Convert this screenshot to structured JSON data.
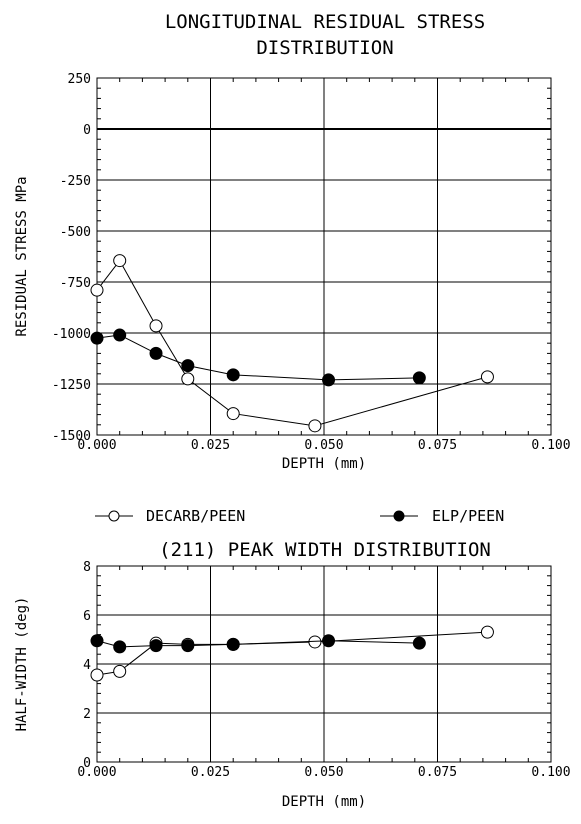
{
  "chart_data": [
    {
      "type": "line",
      "title_lines": [
        "LONGITUDINAL RESIDUAL STRESS",
        "DISTRIBUTION"
      ],
      "xlabel": "DEPTH (mm)",
      "ylabel": "RESIDUAL STRESS MPa",
      "xlim": [
        0,
        0.1
      ],
      "ylim": [
        -1500,
        250
      ],
      "x_ticks": [
        0,
        0.025,
        0.05,
        0.075,
        0.1
      ],
      "x_tick_labels": [
        "0.000",
        "0.025",
        "0.050",
        "0.075",
        "0.100"
      ],
      "y_ticks": [
        250,
        0,
        -250,
        -500,
        -750,
        -1000,
        -1250,
        -1500
      ],
      "y_tick_labels": [
        "250",
        "0",
        "-250",
        "-500",
        "-750",
        "-1000",
        "-1250",
        "-1500"
      ],
      "grid": true,
      "series": [
        {
          "name": "DECARB/PEEN",
          "marker": "open-circle",
          "x": [
            0.0,
            0.005,
            0.013,
            0.02,
            0.03,
            0.048,
            0.086
          ],
          "y": [
            -790,
            -645,
            -965,
            -1225,
            -1395,
            -1455,
            -1215
          ]
        },
        {
          "name": "ELP/PEEN",
          "marker": "filled-circle",
          "x": [
            0.0,
            0.005,
            0.013,
            0.02,
            0.03,
            0.051,
            0.071
          ],
          "y": [
            -1025,
            -1010,
            -1100,
            -1160,
            -1205,
            -1230,
            -1220
          ]
        }
      ]
    },
    {
      "type": "line",
      "title": "(211) PEAK WIDTH DISTRIBUTION",
      "xlabel": "DEPTH (mm)",
      "ylabel": "HALF-WIDTH (deg)",
      "xlim": [
        0,
        0.1
      ],
      "ylim": [
        0,
        8
      ],
      "x_ticks": [
        0,
        0.025,
        0.05,
        0.075,
        0.1
      ],
      "x_tick_labels": [
        "0.000",
        "0.025",
        "0.050",
        "0.075",
        "0.100"
      ],
      "y_ticks": [
        0,
        2,
        4,
        6,
        8
      ],
      "y_tick_labels": [
        "0",
        "2",
        "4",
        "6",
        "8"
      ],
      "grid": true,
      "series": [
        {
          "name": "DECARB/PEEN",
          "marker": "open-circle",
          "x": [
            0.0,
            0.005,
            0.013,
            0.02,
            0.03,
            0.048,
            0.086
          ],
          "y": [
            3.55,
            3.7,
            4.85,
            4.8,
            4.8,
            4.9,
            5.3
          ]
        },
        {
          "name": "ELP/PEEN",
          "marker": "filled-circle",
          "x": [
            0.0,
            0.005,
            0.013,
            0.02,
            0.03,
            0.051,
            0.071
          ],
          "y": [
            4.95,
            4.7,
            4.75,
            4.75,
            4.8,
            4.95,
            4.85
          ]
        }
      ]
    }
  ],
  "legend": {
    "items": [
      {
        "label": "DECARB/PEEN",
        "marker": "open-circle"
      },
      {
        "label": "ELP/PEEN",
        "marker": "filled-circle"
      }
    ]
  },
  "colors": {
    "line": "#000000",
    "background": "#ffffff"
  }
}
